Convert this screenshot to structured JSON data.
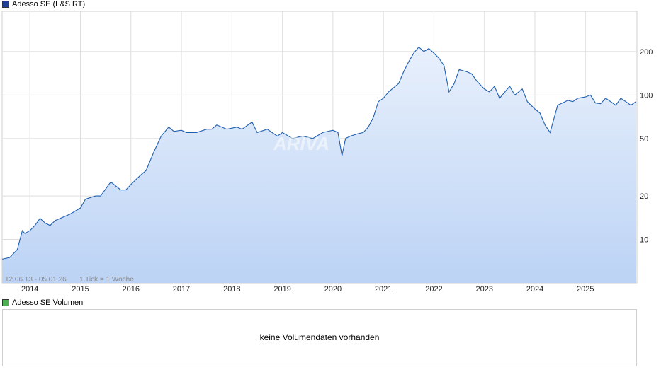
{
  "legend": {
    "price_label": "Adesso SE (L&S RT)",
    "price_color": "#1f3f99",
    "volume_label": "Adesso SE Volumen",
    "volume_color": "#4caf50"
  },
  "info": {
    "date_range": "12.06.13 - 05.01.26",
    "tick_note": "1 Tick = 1 Woche"
  },
  "watermark": "ARIVA",
  "volume": {
    "message": "keine Volumendaten vorhanden"
  },
  "chart_data": {
    "type": "area",
    "scale": "log",
    "grid": true,
    "ylim": [
      5,
      380
    ],
    "x_tick_labels": [
      "2014",
      "2015",
      "2016",
      "2017",
      "2018",
      "2019",
      "2020",
      "2021",
      "2022",
      "2023",
      "2024",
      "2025"
    ],
    "x_tick_years": [
      2014,
      2015,
      2016,
      2017,
      2018,
      2019,
      2020,
      2021,
      2022,
      2023,
      2024,
      2025
    ],
    "y_tick_labels": [
      "10",
      "20",
      "50",
      "100",
      "200"
    ],
    "y_ticks": [
      10,
      20,
      50,
      100,
      200
    ],
    "x_range": [
      2013.45,
      2026.02
    ],
    "series": [
      {
        "line_color": "#1f5fb0",
        "fill_top": "#e8f0fc",
        "fill_bottom": "#bcd3f5",
        "x": [
          2013.45,
          2013.6,
          2013.75,
          2013.85,
          2013.9,
          2014.0,
          2014.1,
          2014.2,
          2014.3,
          2014.4,
          2014.5,
          2014.6,
          2014.8,
          2015.0,
          2015.1,
          2015.2,
          2015.3,
          2015.4,
          2015.6,
          2015.8,
          2015.9,
          2016.0,
          2016.1,
          2016.2,
          2016.3,
          2016.45,
          2016.6,
          2016.75,
          2016.85,
          2017.0,
          2017.1,
          2017.3,
          2017.5,
          2017.6,
          2017.7,
          2017.9,
          2018.1,
          2018.2,
          2018.4,
          2018.5,
          2018.7,
          2018.9,
          2019.0,
          2019.2,
          2019.4,
          2019.6,
          2019.8,
          2020.0,
          2020.1,
          2020.18,
          2020.25,
          2020.35,
          2020.5,
          2020.6,
          2020.7,
          2020.8,
          2020.9,
          2021.0,
          2021.1,
          2021.3,
          2021.4,
          2021.5,
          2021.6,
          2021.7,
          2021.8,
          2021.9,
          2022.0,
          2022.1,
          2022.2,
          2022.3,
          2022.4,
          2022.5,
          2022.65,
          2022.75,
          2022.85,
          2023.0,
          2023.1,
          2023.2,
          2023.3,
          2023.5,
          2023.6,
          2023.75,
          2023.85,
          2024.0,
          2024.1,
          2024.2,
          2024.3,
          2024.45,
          2024.6,
          2024.65,
          2024.75,
          2024.85,
          2025.0,
          2025.1,
          2025.2,
          2025.3,
          2025.4,
          2025.5,
          2025.6,
          2025.7,
          2025.8,
          2025.9,
          2026.0
        ],
        "y": [
          7.3,
          7.5,
          8.5,
          11.5,
          11.0,
          11.5,
          12.5,
          14,
          13,
          12.5,
          13.5,
          14,
          15,
          16.5,
          19,
          19.5,
          20,
          20,
          25,
          22,
          22,
          24,
          26,
          28,
          30,
          40,
          52,
          60,
          56,
          57,
          55,
          55,
          58,
          58,
          62,
          58,
          60,
          58,
          65,
          55,
          58,
          52,
          55,
          50,
          52,
          50,
          55,
          57,
          55,
          38,
          50,
          52,
          54,
          55,
          60,
          70,
          90,
          95,
          105,
          120,
          145,
          170,
          195,
          215,
          200,
          210,
          195,
          180,
          160,
          105,
          120,
          150,
          145,
          140,
          125,
          110,
          105,
          115,
          95,
          115,
          100,
          110,
          90,
          80,
          75,
          62,
          55,
          85,
          90,
          92,
          90,
          95,
          97,
          100,
          88,
          87,
          95,
          90,
          85,
          95,
          90,
          85,
          90
        ]
      }
    ]
  }
}
